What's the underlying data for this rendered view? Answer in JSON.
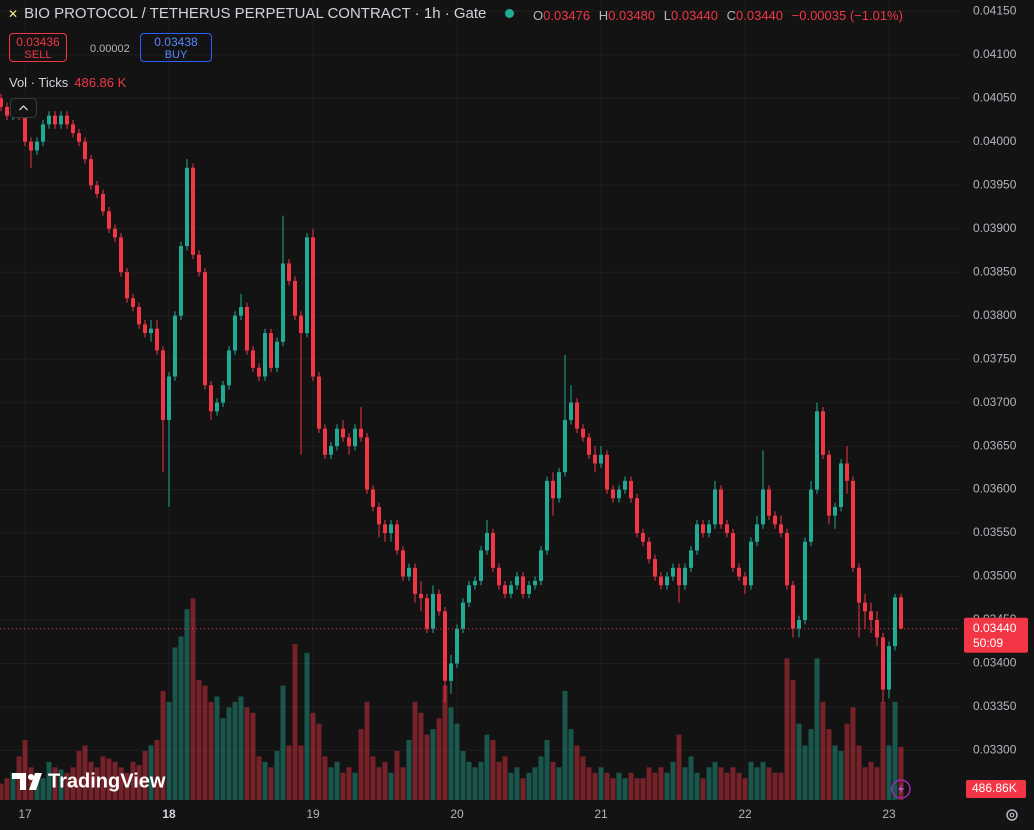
{
  "header": {
    "title": "BIO PROTOCOL / TETHERUS PERPETUAL CONTRACT · 1h · Gate",
    "ohlc": [
      {
        "key": "O",
        "value": "0.03476"
      },
      {
        "key": "H",
        "value": "0.03480"
      },
      {
        "key": "L",
        "value": "0.03440"
      },
      {
        "key": "C",
        "value": "0.03440"
      }
    ],
    "change": "−0.00035 (−1.01%)",
    "sell_price": "0.03436",
    "sell": "SELL",
    "spread": "0.00002",
    "buy_price": "0.03438",
    "buy": "BUY",
    "volume_label": "Vol · Ticks",
    "volume_value": "486.86 K"
  },
  "watermark": "TradingView",
  "chart_data": {
    "type": "candlestick",
    "categories": [
      null,
      null,
      null,
      null,
      "17",
      null,
      null,
      null,
      null,
      null,
      null,
      null,
      null,
      null,
      null,
      null,
      null,
      null,
      null,
      null,
      null,
      null,
      null,
      null,
      null,
      null,
      null,
      null,
      "18",
      null,
      null,
      null,
      null,
      null,
      null,
      null,
      null,
      null,
      null,
      null,
      null,
      null,
      null,
      null,
      null,
      null,
      null,
      null,
      null,
      null,
      null,
      null,
      "19",
      null,
      null,
      null,
      null,
      null,
      null,
      null,
      null,
      null,
      null,
      null,
      null,
      null,
      null,
      null,
      null,
      null,
      null,
      null,
      null,
      null,
      null,
      null,
      "20",
      null,
      null,
      null,
      null,
      null,
      null,
      null,
      null,
      null,
      null,
      null,
      null,
      null,
      null,
      null,
      null,
      null,
      null,
      null,
      null,
      null,
      null,
      null,
      "21",
      null,
      null,
      null,
      null,
      null,
      null,
      null,
      null,
      null,
      null,
      null,
      null,
      null,
      null,
      null,
      null,
      null,
      null,
      null,
      null,
      null,
      null,
      null,
      "22",
      null,
      null,
      null,
      null,
      null,
      null,
      null,
      null,
      null,
      null,
      null,
      null,
      null,
      null,
      null,
      null,
      null,
      null,
      null,
      null,
      null,
      null,
      null,
      "23",
      null,
      null
    ],
    "open": [
      0.0405,
      0.0404,
      0.0403,
      0.0404,
      0.0403,
      0.04,
      0.0399,
      0.04,
      0.0402,
      0.0403,
      0.0402,
      0.0403,
      0.0402,
      0.0401,
      0.04,
      0.0398,
      0.0395,
      0.0394,
      0.0392,
      0.039,
      0.0389,
      0.0385,
      0.0382,
      0.0381,
      0.0379,
      0.0378,
      0.03785,
      0.0376,
      0.0368,
      0.0373,
      0.038,
      0.0388,
      0.0397,
      0.0387,
      0.0385,
      0.0372,
      0.0369,
      0.037,
      0.0372,
      0.0376,
      0.038,
      0.0381,
      0.0376,
      0.0374,
      0.0373,
      0.0378,
      0.0374,
      0.0377,
      0.0386,
      0.0384,
      0.038,
      0.0378,
      0.0389,
      0.0373,
      0.0367,
      0.0364,
      0.0365,
      0.0367,
      0.0366,
      0.0365,
      0.0367,
      0.0366,
      0.036,
      0.0358,
      0.0356,
      0.0355,
      0.0356,
      0.0353,
      0.035,
      0.0351,
      0.0348,
      0.03475,
      0.0344,
      0.0348,
      0.0346,
      0.0338,
      0.034,
      0.0344,
      0.0347,
      0.0349,
      0.03495,
      0.0353,
      0.0355,
      0.0351,
      0.0349,
      0.0348,
      0.0349,
      0.035,
      0.0348,
      0.0349,
      0.03495,
      0.0353,
      0.0361,
      0.0359,
      0.0362,
      0.0368,
      0.037,
      0.0367,
      0.0366,
      0.0364,
      0.0363,
      0.0364,
      0.036,
      0.0359,
      0.036,
      0.0361,
      0.0359,
      0.0355,
      0.0354,
      0.0352,
      0.035,
      0.0349,
      0.035,
      0.0351,
      0.0349,
      0.0351,
      0.0353,
      0.0356,
      0.0355,
      0.0356,
      0.036,
      0.0356,
      0.0355,
      0.0351,
      0.035,
      0.0349,
      0.0354,
      0.0356,
      0.036,
      0.0357,
      0.0356,
      0.0355,
      0.0349,
      0.0344,
      0.0345,
      0.0354,
      0.036,
      0.0369,
      0.0364,
      0.0357,
      0.0358,
      0.0363,
      0.0361,
      0.0351,
      0.0347,
      0.0346,
      0.0345,
      0.0343,
      0.0337,
      0.0342,
      0.03476
    ],
    "high": [
      0.04055,
      0.04045,
      0.04045,
      0.04045,
      0.04035,
      0.04005,
      0.04005,
      0.04025,
      0.04035,
      0.04035,
      0.04035,
      0.04035,
      0.04025,
      0.04015,
      0.04005,
      0.03985,
      0.03955,
      0.03945,
      0.03925,
      0.03905,
      0.03895,
      0.03855,
      0.03825,
      0.03815,
      0.03795,
      0.03795,
      0.03795,
      0.03765,
      0.03735,
      0.03805,
      0.03885,
      0.0398,
      0.03975,
      0.03875,
      0.03855,
      0.03725,
      0.03705,
      0.03725,
      0.03765,
      0.03805,
      0.03825,
      0.03815,
      0.03765,
      0.03745,
      0.03785,
      0.03785,
      0.03775,
      0.03915,
      0.03865,
      0.03845,
      0.03805,
      0.03895,
      0.039,
      0.03735,
      0.03675,
      0.03655,
      0.03675,
      0.0368,
      0.03665,
      0.03675,
      0.03695,
      0.03665,
      0.03605,
      0.03585,
      0.03565,
      0.03565,
      0.03565,
      0.03535,
      0.03515,
      0.03515,
      0.03495,
      0.0348,
      0.0349,
      0.03485,
      0.03465,
      0.0341,
      0.03445,
      0.03475,
      0.03495,
      0.035,
      0.03535,
      0.03565,
      0.03555,
      0.03515,
      0.03495,
      0.03495,
      0.03505,
      0.03505,
      0.03495,
      0.035,
      0.03535,
      0.03615,
      0.0362,
      0.03625,
      0.03755,
      0.0372,
      0.03705,
      0.03675,
      0.03665,
      0.0365,
      0.0365,
      0.03645,
      0.03605,
      0.03605,
      0.03615,
      0.03615,
      0.03595,
      0.03555,
      0.03545,
      0.03525,
      0.03505,
      0.03505,
      0.03515,
      0.03515,
      0.03515,
      0.03535,
      0.03565,
      0.03565,
      0.03565,
      0.0361,
      0.03605,
      0.03565,
      0.03555,
      0.03515,
      0.03505,
      0.03545,
      0.0357,
      0.03645,
      0.03605,
      0.03575,
      0.0357,
      0.03555,
      0.03495,
      0.03455,
      0.03545,
      0.0361,
      0.037,
      0.03695,
      0.03645,
      0.03585,
      0.03635,
      0.0365,
      0.03615,
      0.03515,
      0.0348,
      0.0347,
      0.0346,
      0.03435,
      0.03425,
      0.0348,
      0.0348
    ],
    "low": [
      0.04035,
      0.04025,
      0.04025,
      0.04025,
      0.03995,
      0.0397,
      0.03985,
      0.03995,
      0.04015,
      0.04015,
      0.04015,
      0.04015,
      0.04005,
      0.03995,
      0.03975,
      0.03945,
      0.03935,
      0.03915,
      0.03895,
      0.03885,
      0.03845,
      0.03815,
      0.03805,
      0.03785,
      0.03775,
      0.0377,
      0.03755,
      0.0362,
      0.0358,
      0.03725,
      0.03795,
      0.03875,
      0.03865,
      0.03845,
      0.03715,
      0.0368,
      0.03685,
      0.03695,
      0.03715,
      0.03755,
      0.03795,
      0.03755,
      0.03735,
      0.03725,
      0.03725,
      0.03735,
      0.03735,
      0.03765,
      0.03835,
      0.03795,
      0.0364,
      0.03775,
      0.03725,
      0.03665,
      0.03635,
      0.03635,
      0.03645,
      0.03655,
      0.0364,
      0.03645,
      0.03655,
      0.03595,
      0.03575,
      0.03545,
      0.0354,
      0.0354,
      0.03525,
      0.03495,
      0.03495,
      0.0347,
      0.0346,
      0.03435,
      0.03435,
      0.03455,
      0.03355,
      0.03365,
      0.03395,
      0.03435,
      0.03465,
      0.03485,
      0.0349,
      0.03525,
      0.03505,
      0.03485,
      0.03475,
      0.03475,
      0.03485,
      0.03475,
      0.03475,
      0.03485,
      0.0349,
      0.03525,
      0.0357,
      0.03585,
      0.03615,
      0.03675,
      0.03665,
      0.03655,
      0.03635,
      0.0362,
      0.03625,
      0.03595,
      0.03585,
      0.03585,
      0.03595,
      0.03585,
      0.03545,
      0.03535,
      0.03515,
      0.03495,
      0.03485,
      0.03485,
      0.03495,
      0.0347,
      0.03485,
      0.03505,
      0.03525,
      0.03545,
      0.03545,
      0.03555,
      0.03555,
      0.03545,
      0.03505,
      0.03495,
      0.0348,
      0.03485,
      0.03535,
      0.03555,
      0.03565,
      0.03555,
      0.03545,
      0.03485,
      0.0343,
      0.0343,
      0.03445,
      0.03535,
      0.03595,
      0.03635,
      0.0356,
      0.03555,
      0.03575,
      0.03595,
      0.03505,
      0.0343,
      0.0344,
      0.03435,
      0.0342,
      0.03355,
      0.0336,
      0.03415,
      0.0344
    ],
    "close": [
      0.0404,
      0.0403,
      0.0404,
      0.0403,
      0.04,
      0.0399,
      0.04,
      0.0402,
      0.0403,
      0.0402,
      0.0403,
      0.0402,
      0.0401,
      0.04,
      0.0398,
      0.0395,
      0.0394,
      0.0392,
      0.039,
      0.0389,
      0.0385,
      0.0382,
      0.0381,
      0.0379,
      0.0378,
      0.03785,
      0.0376,
      0.0368,
      0.0373,
      0.038,
      0.0388,
      0.0397,
      0.0387,
      0.0385,
      0.0372,
      0.0369,
      0.037,
      0.0372,
      0.0376,
      0.038,
      0.0381,
      0.0376,
      0.0374,
      0.0373,
      0.0378,
      0.0374,
      0.0377,
      0.0386,
      0.0384,
      0.038,
      0.0378,
      0.0389,
      0.0373,
      0.0367,
      0.0364,
      0.0365,
      0.0367,
      0.0366,
      0.0365,
      0.0367,
      0.0366,
      0.036,
      0.0358,
      0.0356,
      0.0355,
      0.0356,
      0.0353,
      0.035,
      0.0351,
      0.0348,
      0.03475,
      0.0344,
      0.0348,
      0.0346,
      0.0338,
      0.034,
      0.0344,
      0.0347,
      0.0349,
      0.03495,
      0.0353,
      0.0355,
      0.0351,
      0.0349,
      0.0348,
      0.0349,
      0.035,
      0.0348,
      0.0349,
      0.03495,
      0.0353,
      0.0361,
      0.0359,
      0.0362,
      0.0368,
      0.037,
      0.0367,
      0.0366,
      0.0364,
      0.0363,
      0.0364,
      0.036,
      0.0359,
      0.036,
      0.0361,
      0.0359,
      0.0355,
      0.0354,
      0.0352,
      0.035,
      0.0349,
      0.035,
      0.0351,
      0.0349,
      0.0351,
      0.0353,
      0.0356,
      0.0355,
      0.0356,
      0.036,
      0.0356,
      0.0355,
      0.0351,
      0.035,
      0.0349,
      0.0354,
      0.0356,
      0.036,
      0.0357,
      0.0356,
      0.0355,
      0.0349,
      0.0344,
      0.0345,
      0.0354,
      0.036,
      0.0369,
      0.0364,
      0.0357,
      0.0358,
      0.0363,
      0.0361,
      0.0351,
      0.0347,
      0.0346,
      0.0345,
      0.0343,
      0.0337,
      0.0342,
      0.03476,
      0.0344
    ],
    "volume": [
      150,
      200,
      250,
      400,
      550,
      300,
      250,
      200,
      350,
      300,
      280,
      250,
      300,
      450,
      500,
      350,
      300,
      400,
      380,
      350,
      300,
      250,
      350,
      320,
      450,
      500,
      550,
      1000,
      900,
      1400,
      1500,
      1750,
      1850,
      1100,
      1050,
      900,
      950,
      750,
      850,
      900,
      950,
      850,
      800,
      400,
      350,
      300,
      450,
      1050,
      500,
      1430,
      500,
      1350,
      800,
      700,
      400,
      300,
      350,
      250,
      300,
      250,
      650,
      900,
      400,
      300,
      350,
      250,
      450,
      300,
      550,
      900,
      800,
      600,
      650,
      750,
      1050,
      850,
      700,
      450,
      350,
      300,
      350,
      600,
      550,
      350,
      400,
      250,
      300,
      200,
      250,
      300,
      400,
      550,
      350,
      300,
      1000,
      650,
      500,
      400,
      300,
      250,
      300,
      250,
      200,
      250,
      200,
      250,
      200,
      200,
      300,
      250,
      300,
      250,
      350,
      600,
      300,
      400,
      250,
      200,
      300,
      350,
      300,
      250,
      300,
      250,
      200,
      350,
      300,
      350,
      300,
      250,
      250,
      1300,
      1100,
      700,
      500,
      650,
      1300,
      900,
      650,
      500,
      450,
      700,
      850,
      500,
      300,
      350,
      300,
      900,
      500,
      900,
      486.86
    ],
    "up_color": "#22ab94",
    "down_color": "#f23645",
    "ylim": [
      0.03243,
      0.04163
    ],
    "yticks": [
      {
        "value": 0.033,
        "label": "0.03300"
      },
      {
        "value": 0.0335,
        "label": "0.03350"
      },
      {
        "value": 0.034,
        "label": "0.03400"
      },
      {
        "value": 0.0345,
        "label": "0.03450"
      },
      {
        "value": 0.035,
        "label": "0.03500"
      },
      {
        "value": 0.0355,
        "label": "0.03550"
      },
      {
        "value": 0.036,
        "label": "0.03600"
      },
      {
        "value": 0.0365,
        "label": "0.03650"
      },
      {
        "value": 0.037,
        "label": "0.03700"
      },
      {
        "value": 0.0375,
        "label": "0.03750"
      },
      {
        "value": 0.038,
        "label": "0.03800"
      },
      {
        "value": 0.0385,
        "label": "0.03850"
      },
      {
        "value": 0.039,
        "label": "0.03900"
      },
      {
        "value": 0.0395,
        "label": "0.03950"
      },
      {
        "value": 0.04,
        "label": "0.04000"
      },
      {
        "value": 0.0405,
        "label": "0.04050"
      },
      {
        "value": 0.041,
        "label": "0.04100"
      },
      {
        "value": 0.0415,
        "label": "0.04150"
      }
    ],
    "grid": true,
    "last_price_label": "0.03440",
    "countdown": "50:09",
    "volume_axis_label": "486.86K"
  }
}
